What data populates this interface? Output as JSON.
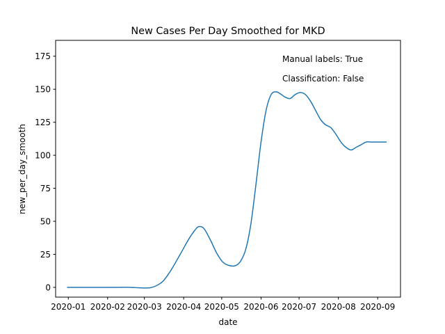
{
  "chart_data": {
    "type": "line",
    "title": "New Cases Per Day Smoothed for MKD",
    "xlabel": "date",
    "ylabel": "new_per_day_smooth",
    "xlim": [
      "2019-12-22",
      "2020-09-19"
    ],
    "ylim": [
      -7.4,
      187
    ],
    "x_ticks": [
      "2020-01",
      "2020-02",
      "2020-03",
      "2020-04",
      "2020-05",
      "2020-06",
      "2020-07",
      "2020-08",
      "2020-09"
    ],
    "y_ticks": [
      0,
      25,
      50,
      75,
      100,
      125,
      150,
      175
    ],
    "grid": false,
    "color": "#1f77b4",
    "annotations": [
      "Manual labels: True",
      "Classification: False"
    ],
    "series": [
      {
        "x": [
          "2019-12-31",
          "2020-01-10",
          "2020-01-20",
          "2020-01-30",
          "2020-02-09",
          "2020-02-19",
          "2020-02-25",
          "2020-03-01",
          "2020-03-06",
          "2020-03-11",
          "2020-03-16",
          "2020-03-21",
          "2020-03-26",
          "2020-03-31",
          "2020-04-05",
          "2020-04-10",
          "2020-04-13",
          "2020-04-17",
          "2020-04-22",
          "2020-04-27",
          "2020-05-02",
          "2020-05-07",
          "2020-05-12",
          "2020-05-16",
          "2020-05-20",
          "2020-05-24",
          "2020-05-28",
          "2020-06-01",
          "2020-06-05",
          "2020-06-09",
          "2020-06-13",
          "2020-06-17",
          "2020-06-20",
          "2020-06-24",
          "2020-06-28",
          "2020-07-02",
          "2020-07-06",
          "2020-07-10",
          "2020-07-14",
          "2020-07-18",
          "2020-07-22",
          "2020-07-26",
          "2020-07-30",
          "2020-08-03",
          "2020-08-07",
          "2020-08-11",
          "2020-08-15",
          "2020-08-19",
          "2020-08-23",
          "2020-08-27",
          "2020-08-31",
          "2020-09-04",
          "2020-09-08"
        ],
        "values": [
          0,
          0,
          0,
          0,
          0,
          0,
          -0.3,
          -0.5,
          -0.2,
          1.5,
          5,
          11.5,
          19.5,
          28,
          36.5,
          43.5,
          46,
          44.5,
          36,
          26,
          19,
          16.5,
          16.5,
          20,
          29,
          48,
          78,
          110,
          134,
          146,
          148,
          146,
          144,
          143,
          146,
          147.5,
          146,
          141,
          134,
          127,
          123,
          121,
          116,
          110,
          106,
          104,
          106,
          108,
          110,
          110,
          110,
          110,
          110
        ]
      }
    ]
  }
}
